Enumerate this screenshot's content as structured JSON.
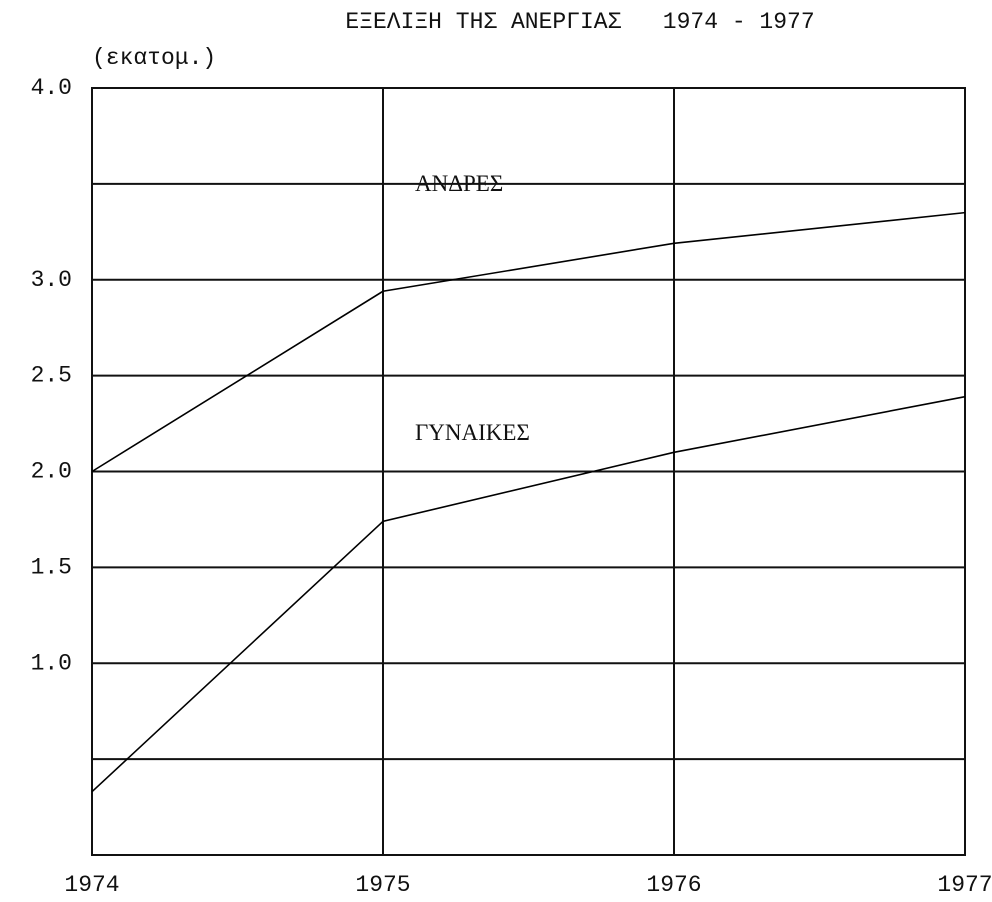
{
  "chart_data": {
    "type": "line",
    "title": "ΕΞΕΛΙΞΗ ΤΗΣ ΑΝΕΡΓΙΑΣ   1974 - 1977",
    "y_label": "(εκατομ.)",
    "x": [
      1974,
      1975,
      1976,
      1977
    ],
    "series": [
      {
        "name": "ΑΝΔΡΕΣ",
        "color": "#000000",
        "values": [
          2.0,
          2.94,
          3.19,
          3.35
        ]
      },
      {
        "name": "ΓΥΝΑΙΚΕΣ",
        "color": "#000000",
        "values": [
          0.33,
          1.74,
          2.1,
          2.39
        ]
      }
    ],
    "xlim": [
      1974,
      1977
    ],
    "xticks": [
      1974,
      1975,
      1976,
      1977
    ],
    "ylim": [
      0,
      4
    ],
    "yticks": [
      {
        "value": 0.5,
        "label": null
      },
      {
        "value": 1,
        "label": "1.0"
      },
      {
        "value": 1.5,
        "label": "1.5"
      },
      {
        "value": 2,
        "label": "2.0"
      },
      {
        "value": 2.5,
        "label": "2.5"
      },
      {
        "value": 3,
        "label": "3.0"
      },
      {
        "value": 3.5,
        "label": null
      },
      {
        "value": 4,
        "label": "4.0"
      }
    ],
    "grid": true
  }
}
